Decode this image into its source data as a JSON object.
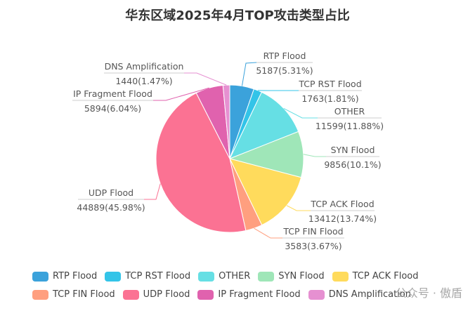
{
  "chart_data": {
    "type": "pie",
    "title": "华东区域2025年4月TOP攻击类型占比",
    "start_angle": 90,
    "direction": "clockwise",
    "legend_position": "bottom",
    "slices": [
      {
        "name": "RTP Flood",
        "value": 5187,
        "percent": "5.31%",
        "color": "#3ba2db"
      },
      {
        "name": "TCP RST Flood",
        "value": 1763,
        "percent": "1.81%",
        "color": "#33c4e8"
      },
      {
        "name": "OTHER",
        "value": 11599,
        "percent": "11.88%",
        "color": "#66dfe4"
      },
      {
        "name": "SYN Flood",
        "value": 9856,
        "percent": "10.1%",
        "color": "#9fe6b8"
      },
      {
        "name": "TCP ACK Flood",
        "value": 13412,
        "percent": "13.74%",
        "color": "#ffdb5c"
      },
      {
        "name": "TCP FIN Flood",
        "value": 3583,
        "percent": "3.67%",
        "color": "#ff9f7f"
      },
      {
        "name": "UDP Flood",
        "value": 44889,
        "percent": "45.98%",
        "color": "#fb7293"
      },
      {
        "name": "IP Fragment Flood",
        "value": 5894,
        "percent": "6.04%",
        "color": "#e062ae"
      },
      {
        "name": "DNS Amplification",
        "value": 1440,
        "percent": "1.47%",
        "color": "#e690d1"
      }
    ]
  },
  "watermark": "公众号 · 傲盾"
}
